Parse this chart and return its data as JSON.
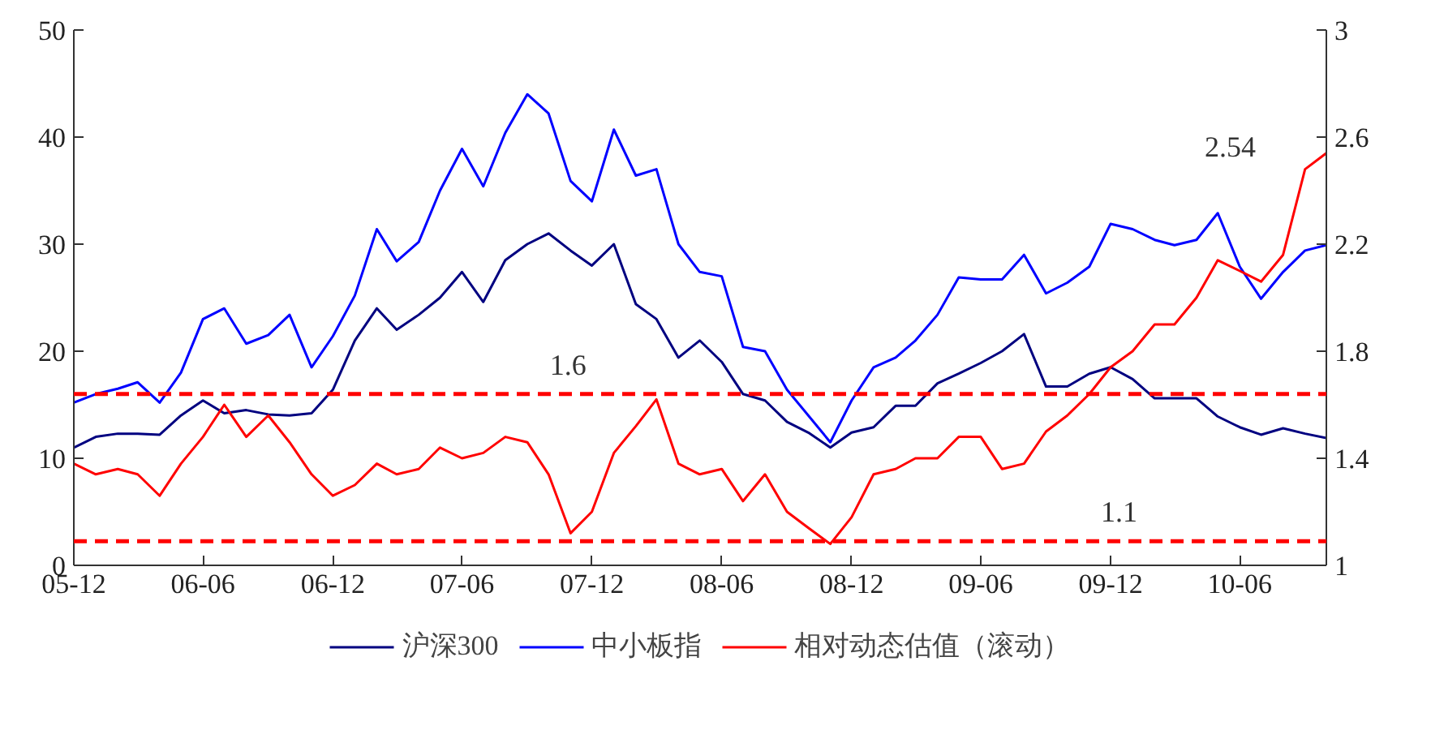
{
  "chart_data": {
    "type": "line",
    "x": [
      "2005-12",
      "2006-01",
      "2006-02",
      "2006-03",
      "2006-04",
      "2006-05",
      "2006-06",
      "2006-07",
      "2006-08",
      "2006-09",
      "2006-10",
      "2006-11",
      "2006-12",
      "2007-01",
      "2007-02",
      "2007-03",
      "2007-04",
      "2007-05",
      "2007-06",
      "2007-07",
      "2007-08",
      "2007-09",
      "2007-10",
      "2007-11",
      "2007-12",
      "2008-01",
      "2008-02",
      "2008-03",
      "2008-04",
      "2008-05",
      "2008-06",
      "2008-07",
      "2008-08",
      "2008-09",
      "2008-10",
      "2008-11",
      "2008-12",
      "2009-01",
      "2009-02",
      "2009-03",
      "2009-04",
      "2009-05",
      "2009-06",
      "2009-07",
      "2009-08",
      "2009-09",
      "2009-10",
      "2009-11",
      "2009-12",
      "2010-01",
      "2010-02",
      "2010-03",
      "2010-04",
      "2010-05",
      "2010-06",
      "2010-07",
      "2010-08",
      "2010-09",
      "2010-10"
    ],
    "series": [
      {
        "name": "沪深300",
        "color": "#000080",
        "values": [
          11,
          12,
          12.3,
          12.3,
          12.2,
          14,
          15.4,
          14.2,
          14.5,
          14.1,
          14,
          14.2,
          16.4,
          21,
          24,
          22,
          23.4,
          25,
          27.4,
          24.6,
          28.5,
          30,
          31,
          29.4,
          28,
          30,
          24.4,
          23,
          19.4,
          21,
          19,
          16,
          15.4,
          13.4,
          12.4,
          11,
          12.4,
          12.9,
          14.9,
          14.9,
          17,
          17.9,
          18.9,
          20,
          21.6,
          16.7,
          16.7,
          17.9,
          18.5,
          17.4,
          15.6,
          15.6,
          15.6,
          13.9,
          12.9,
          12.2,
          12.8,
          12.3,
          11.9
        ]
      },
      {
        "name": "中小板指",
        "color": "#0000ff",
        "values": [
          15.2,
          16,
          16.5,
          17.1,
          15.2,
          18,
          23,
          24,
          20.7,
          21.5,
          23.4,
          18.5,
          21.4,
          25.2,
          31.4,
          28.4,
          30.2,
          35,
          38.9,
          35.4,
          40.4,
          44,
          42.2,
          35.9,
          34,
          40.7,
          36.4,
          37,
          30,
          27.4,
          27,
          20.4,
          20,
          16.4,
          14,
          11.5,
          15.4,
          18.5,
          19.4,
          21,
          23.4,
          26.9,
          26.7,
          26.7,
          29,
          25.4,
          26.4,
          27.9,
          31.9,
          31.4,
          30.4,
          29.9,
          30.4,
          32.9,
          27.9,
          24.9,
          27.4,
          29.4,
          29.9
        ]
      },
      {
        "name": "相对动态估值（滚动）",
        "color": "#ff0000",
        "axis": "y2",
        "values": [
          1.38,
          1.34,
          1.36,
          1.34,
          1.26,
          1.38,
          1.48,
          1.6,
          1.48,
          1.56,
          1.46,
          1.34,
          1.26,
          1.3,
          1.38,
          1.34,
          1.36,
          1.44,
          1.4,
          1.42,
          1.48,
          1.46,
          1.34,
          1.12,
          1.2,
          1.42,
          1.52,
          1.62,
          1.38,
          1.34,
          1.36,
          1.24,
          1.34,
          1.2,
          1.14,
          1.08,
          1.18,
          1.34,
          1.36,
          1.4,
          1.4,
          1.48,
          1.48,
          1.36,
          1.38,
          1.5,
          1.56,
          1.64,
          1.74,
          1.8,
          1.9,
          1.9,
          2.0,
          2.14,
          2.1,
          2.06,
          2.16,
          2.48,
          2.54
        ]
      }
    ],
    "xlim": [
      "2005-12",
      "2010-10"
    ],
    "xticks": [
      {
        "value": "2005-12",
        "label": "05-12"
      },
      {
        "value": "2006-06",
        "label": "06-06"
      },
      {
        "value": "2006-12",
        "label": "06-12"
      },
      {
        "value": "2007-06",
        "label": "07-06"
      },
      {
        "value": "2007-12",
        "label": "07-12"
      },
      {
        "value": "2008-06",
        "label": "08-06"
      },
      {
        "value": "2008-12",
        "label": "08-12"
      },
      {
        "value": "2009-06",
        "label": "09-06"
      },
      {
        "value": "2009-12",
        "label": "09-12"
      },
      {
        "value": "2010-06",
        "label": "10-06"
      }
    ],
    "ylim": [
      0,
      50
    ],
    "yticks": [
      0,
      10,
      20,
      30,
      40,
      50
    ],
    "y2lim": [
      1,
      3
    ],
    "y2ticks": [
      1,
      1.4,
      1.8,
      2.2,
      2.6,
      3
    ],
    "ref_lines": [
      {
        "axis": "y2",
        "value": 1.64,
        "label": "1.6",
        "color": "#ff0000",
        "line_style": "dashed"
      },
      {
        "axis": "y2",
        "value": 1.09,
        "label": "1.1",
        "color": "#ff0000",
        "line_style": "dashed"
      }
    ],
    "annotations": [
      "2.54"
    ],
    "legend": "bottom",
    "grid": false
  }
}
